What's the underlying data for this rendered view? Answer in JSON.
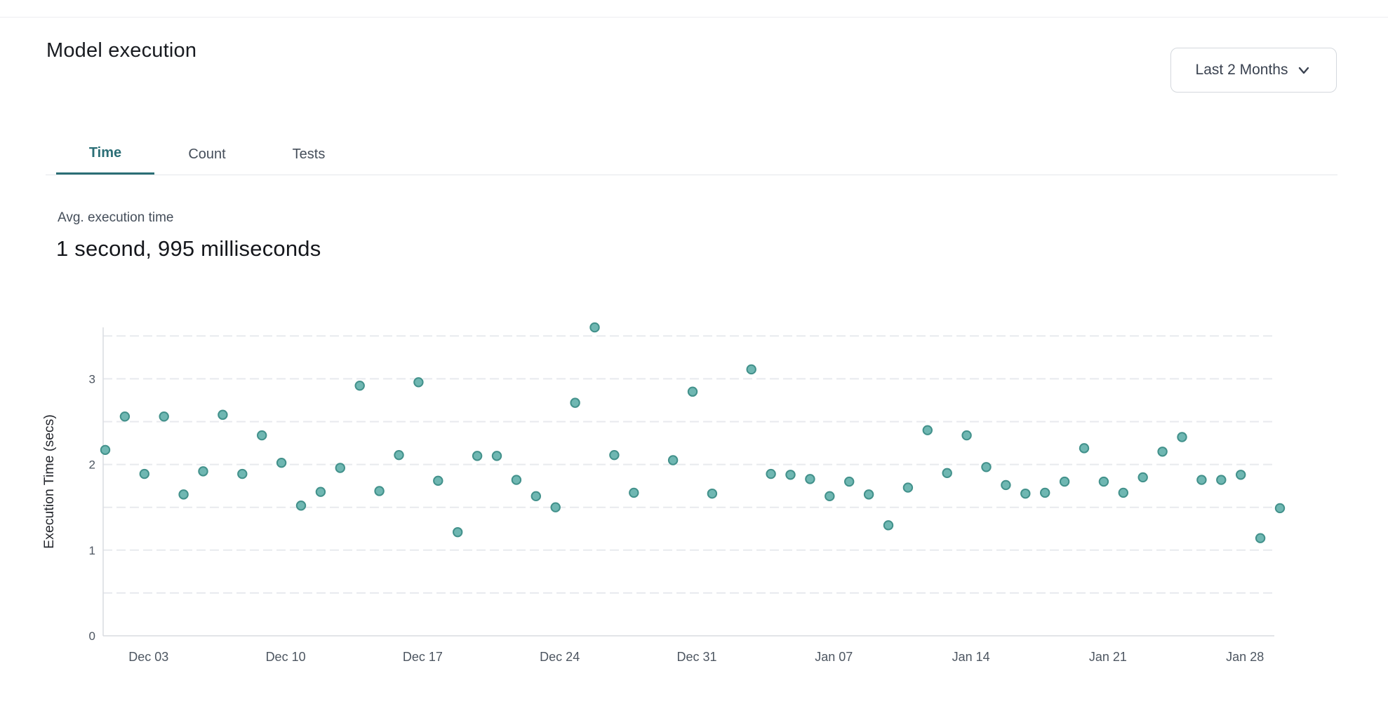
{
  "page": {
    "title": "Model execution"
  },
  "range_selector": {
    "label": "Last 2 Months",
    "icon": "chevron-down-icon"
  },
  "tabs": [
    {
      "label": "Time",
      "active": true
    },
    {
      "label": "Count",
      "active": false
    },
    {
      "label": "Tests",
      "active": false
    }
  ],
  "metric": {
    "label": "Avg. execution time",
    "value": "1 second, 995 milliseconds"
  },
  "colors": {
    "accent_teal": "#2b6e76",
    "point_fill": "#6fb7b2",
    "point_stroke": "#42918b",
    "axis_line": "#d9dce1",
    "gridline": "#e8eaee",
    "tick_text": "#4d5661",
    "axis_label_text": "#23262c"
  },
  "chart_data": {
    "type": "scatter",
    "title": "",
    "xlabel": "",
    "ylabel": "Execution Time (secs)",
    "ylim": [
      0,
      3.6
    ],
    "yticks": [
      0,
      1,
      2,
      3
    ],
    "gridline_step": 0.5,
    "grid": "horizontal-dashed",
    "legend": "none",
    "x_tick_labels": [
      {
        "label": "Dec 03",
        "d": 2
      },
      {
        "label": "Dec 10",
        "d": 9
      },
      {
        "label": "Dec 17",
        "d": 16
      },
      {
        "label": "Dec 24",
        "d": 23
      },
      {
        "label": "Dec 31",
        "d": 30
      },
      {
        "label": "Jan 07",
        "d": 37
      },
      {
        "label": "Jan 14",
        "d": 44
      },
      {
        "label": "Jan 21",
        "d": 51
      },
      {
        "label": "Jan 28",
        "d": 58
      }
    ],
    "points": [
      {
        "date": "Dec 01",
        "d": 0,
        "secs": 2.17
      },
      {
        "date": "Dec 02",
        "d": 1,
        "secs": 2.56
      },
      {
        "date": "Dec 03",
        "d": 2,
        "secs": 1.89
      },
      {
        "date": "Dec 04",
        "d": 3,
        "secs": 2.56
      },
      {
        "date": "Dec 05",
        "d": 4,
        "secs": 1.65
      },
      {
        "date": "Dec 06",
        "d": 5,
        "secs": 1.92
      },
      {
        "date": "Dec 07",
        "d": 6,
        "secs": 2.58
      },
      {
        "date": "Dec 08",
        "d": 7,
        "secs": 1.89
      },
      {
        "date": "Dec 09",
        "d": 8,
        "secs": 2.34
      },
      {
        "date": "Dec 10",
        "d": 9,
        "secs": 2.02
      },
      {
        "date": "Dec 11",
        "d": 10,
        "secs": 1.52
      },
      {
        "date": "Dec 12",
        "d": 11,
        "secs": 1.68
      },
      {
        "date": "Dec 13",
        "d": 12,
        "secs": 1.96
      },
      {
        "date": "Dec 14",
        "d": 13,
        "secs": 2.92
      },
      {
        "date": "Dec 15",
        "d": 14,
        "secs": 1.69
      },
      {
        "date": "Dec 16",
        "d": 15,
        "secs": 2.11
      },
      {
        "date": "Dec 17",
        "d": 16,
        "secs": 2.96
      },
      {
        "date": "Dec 18",
        "d": 17,
        "secs": 1.81
      },
      {
        "date": "Dec 19",
        "d": 18,
        "secs": 1.21
      },
      {
        "date": "Dec 20",
        "d": 19,
        "secs": 2.1
      },
      {
        "date": "Dec 21",
        "d": 20,
        "secs": 2.1
      },
      {
        "date": "Dec 22",
        "d": 21,
        "secs": 1.82
      },
      {
        "date": "Dec 23",
        "d": 22,
        "secs": 1.63
      },
      {
        "date": "Dec 24",
        "d": 23,
        "secs": 1.5
      },
      {
        "date": "Dec 25",
        "d": 24,
        "secs": 2.72
      },
      {
        "date": "Dec 26",
        "d": 25,
        "secs": 3.6
      },
      {
        "date": "Dec 27",
        "d": 26,
        "secs": 2.11
      },
      {
        "date": "Dec 28",
        "d": 27,
        "secs": 1.67
      },
      {
        "date": "Dec 30",
        "d": 29,
        "secs": 2.05
      },
      {
        "date": "Dec 31",
        "d": 30,
        "secs": 2.85
      },
      {
        "date": "Jan 01",
        "d": 31,
        "secs": 1.66
      },
      {
        "date": "Jan 03",
        "d": 33,
        "secs": 3.11
      },
      {
        "date": "Jan 04",
        "d": 34,
        "secs": 1.89
      },
      {
        "date": "Jan 05",
        "d": 35,
        "secs": 1.88
      },
      {
        "date": "Jan 06",
        "d": 36,
        "secs": 1.83
      },
      {
        "date": "Jan 07",
        "d": 37,
        "secs": 1.63
      },
      {
        "date": "Jan 08",
        "d": 38,
        "secs": 1.8
      },
      {
        "date": "Jan 09",
        "d": 39,
        "secs": 1.65
      },
      {
        "date": "Jan 10",
        "d": 40,
        "secs": 1.29
      },
      {
        "date": "Jan 11",
        "d": 41,
        "secs": 1.73
      },
      {
        "date": "Jan 12",
        "d": 42,
        "secs": 2.4
      },
      {
        "date": "Jan 13",
        "d": 43,
        "secs": 1.9
      },
      {
        "date": "Jan 14",
        "d": 44,
        "secs": 2.34
      },
      {
        "date": "Jan 15",
        "d": 45,
        "secs": 1.97
      },
      {
        "date": "Jan 16",
        "d": 46,
        "secs": 1.76
      },
      {
        "date": "Jan 17",
        "d": 47,
        "secs": 1.66
      },
      {
        "date": "Jan 18",
        "d": 48,
        "secs": 1.67
      },
      {
        "date": "Jan 19",
        "d": 49,
        "secs": 1.8
      },
      {
        "date": "Jan 20",
        "d": 50,
        "secs": 2.19
      },
      {
        "date": "Jan 21",
        "d": 51,
        "secs": 1.8
      },
      {
        "date": "Jan 22",
        "d": 52,
        "secs": 1.67
      },
      {
        "date": "Jan 23",
        "d": 53,
        "secs": 1.85
      },
      {
        "date": "Jan 24",
        "d": 54,
        "secs": 2.15
      },
      {
        "date": "Jan 25",
        "d": 55,
        "secs": 2.32
      },
      {
        "date": "Jan 26",
        "d": 56,
        "secs": 1.82
      },
      {
        "date": "Jan 27",
        "d": 57,
        "secs": 1.82
      },
      {
        "date": "Jan 28",
        "d": 58,
        "secs": 1.88
      },
      {
        "date": "Jan 29",
        "d": 59,
        "secs": 1.14
      },
      {
        "date": "Jan 30",
        "d": 60,
        "secs": 1.49
      }
    ]
  }
}
